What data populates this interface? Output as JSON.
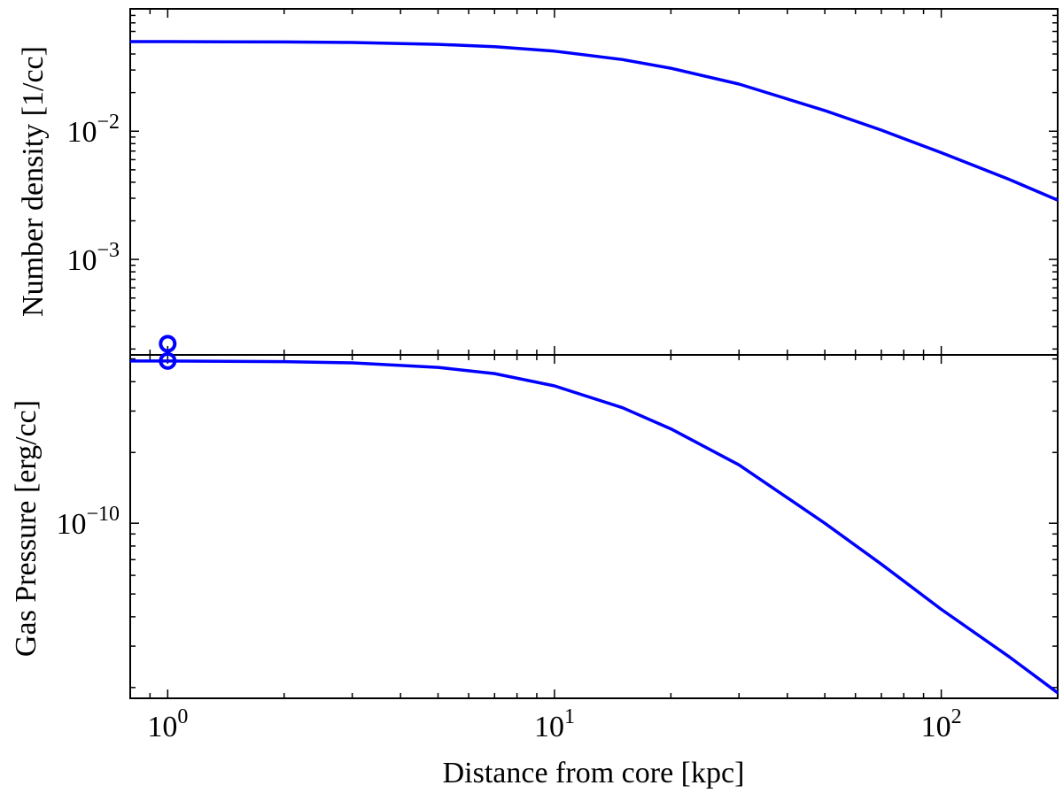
{
  "chart_data": [
    {
      "type": "line",
      "panel": "top",
      "xlabel": "",
      "ylabel": "Number density [1/cc]",
      "xscale": "log",
      "yscale": "log",
      "xlim": [
        0.8,
        200
      ],
      "ylim": [
        0.00018,
        0.09
      ],
      "x_tick_labels": [],
      "y_ticks": [
        {
          "base": "10",
          "exp": "−2",
          "value": 0.01
        },
        {
          "base": "10",
          "exp": "−3",
          "value": 0.001
        }
      ],
      "series": [
        {
          "color": "#0000ff",
          "x": [
            0.8,
            1,
            2,
            3,
            5,
            7,
            10,
            15,
            20,
            30,
            50,
            70,
            100,
            150,
            200
          ],
          "y": [
            0.05,
            0.05,
            0.0497,
            0.0492,
            0.0476,
            0.0456,
            0.0421,
            0.0362,
            0.031,
            0.0233,
            0.0145,
            0.0102,
            0.0068,
            0.0042,
            0.0029
          ]
        }
      ],
      "markers": [
        {
          "shape": "circle-open",
          "color": "#0000ff",
          "x": 1,
          "y": 0.00022
        }
      ],
      "grid": false
    },
    {
      "type": "line",
      "panel": "bottom",
      "xlabel": "Distance from core [kpc]",
      "ylabel": "Gas Pressure [erg/cc]",
      "xscale": "log",
      "yscale": "log",
      "xlim": [
        0.8,
        200
      ],
      "ylim": [
        1.8e-11,
        5.2e-10
      ],
      "x_ticks": [
        {
          "base": "10",
          "exp": "0",
          "value": 1
        },
        {
          "base": "10",
          "exp": "1",
          "value": 10
        },
        {
          "base": "10",
          "exp": "2",
          "value": 100
        }
      ],
      "y_ticks": [
        {
          "base": "10",
          "exp": "−10",
          "value": 1e-10
        }
      ],
      "series": [
        {
          "color": "#0000ff",
          "x": [
            0.8,
            1,
            2,
            3,
            5,
            7,
            10,
            15,
            20,
            30,
            50,
            70,
            100,
            150,
            200
          ],
          "y": [
            4.9e-10,
            4.9e-10,
            4.87e-10,
            4.81e-10,
            4.6e-10,
            4.33e-10,
            3.84e-10,
            3.1e-10,
            2.52e-10,
            1.77e-10,
            1e-10,
            6.7e-11,
            4.3e-11,
            2.7e-11,
            1.9e-11
          ]
        }
      ],
      "markers": [
        {
          "shape": "circle-open",
          "color": "#0000ff",
          "x": 1,
          "y": 4.9e-10
        }
      ],
      "grid": false
    }
  ]
}
